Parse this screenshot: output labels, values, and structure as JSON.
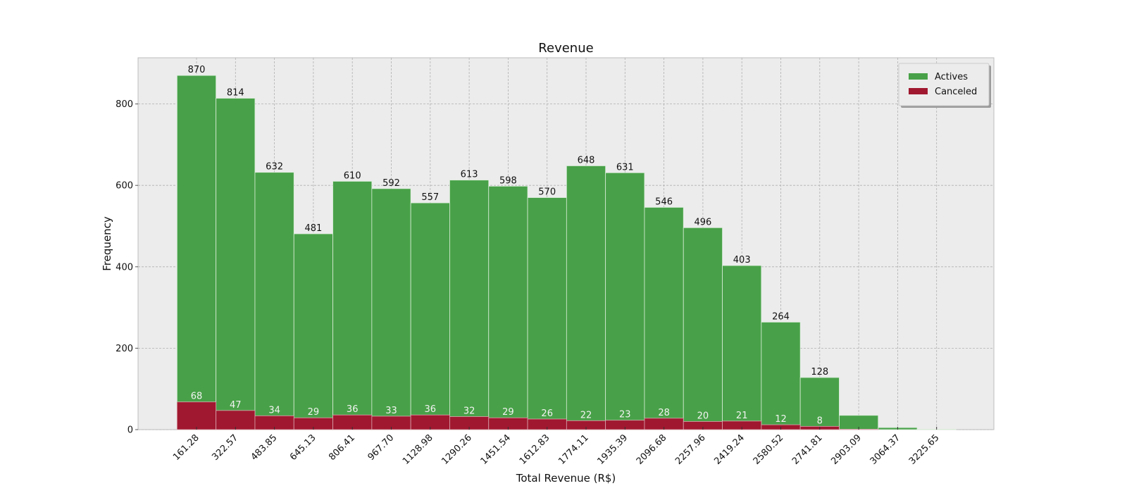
{
  "chart_data": {
    "type": "bar",
    "title": "Revenue",
    "xlabel": "Total Revenue (R$)",
    "ylabel": "Frequency",
    "categories": [
      "161.28",
      "322.57",
      "483.85",
      "645.13",
      "806.41",
      "967.70",
      "1128.98",
      "1290.26",
      "1451.54",
      "1612.83",
      "1774.11",
      "1935.39",
      "2096.68",
      "2257.96",
      "2419.24",
      "2580.52",
      "2741.81",
      "2903.09",
      "3064.37",
      "3225.65"
    ],
    "series": [
      {
        "name": "Actives",
        "color": "#48a148",
        "values": [
          870,
          814,
          632,
          481,
          610,
          592,
          557,
          613,
          598,
          570,
          648,
          631,
          546,
          496,
          403,
          264,
          128,
          35,
          5,
          1
        ],
        "labels": [
          "870",
          "814",
          "632",
          "481",
          "610",
          "592",
          "557",
          "613",
          "598",
          "570",
          "648",
          "631",
          "546",
          "496",
          "403",
          "264",
          "128",
          "",
          "",
          ""
        ]
      },
      {
        "name": "Canceled",
        "color": "#a0182f",
        "values": [
          68,
          47,
          34,
          29,
          36,
          33,
          36,
          32,
          29,
          26,
          22,
          23,
          28,
          20,
          21,
          12,
          8,
          1,
          0,
          0
        ],
        "labels": [
          "68",
          "47",
          "34",
          "29",
          "36",
          "33",
          "36",
          "32",
          "29",
          "26",
          "22",
          "23",
          "28",
          "20",
          "21",
          "12",
          "8",
          "",
          "",
          ""
        ]
      }
    ],
    "yticks": [
      0,
      200,
      400,
      600,
      800
    ],
    "ylim": [
      0,
      913.5
    ],
    "grid": true,
    "legend_position": "top-right",
    "style": {
      "plot_background": "#ececec",
      "grid_color": "#b0b0b0"
    }
  }
}
